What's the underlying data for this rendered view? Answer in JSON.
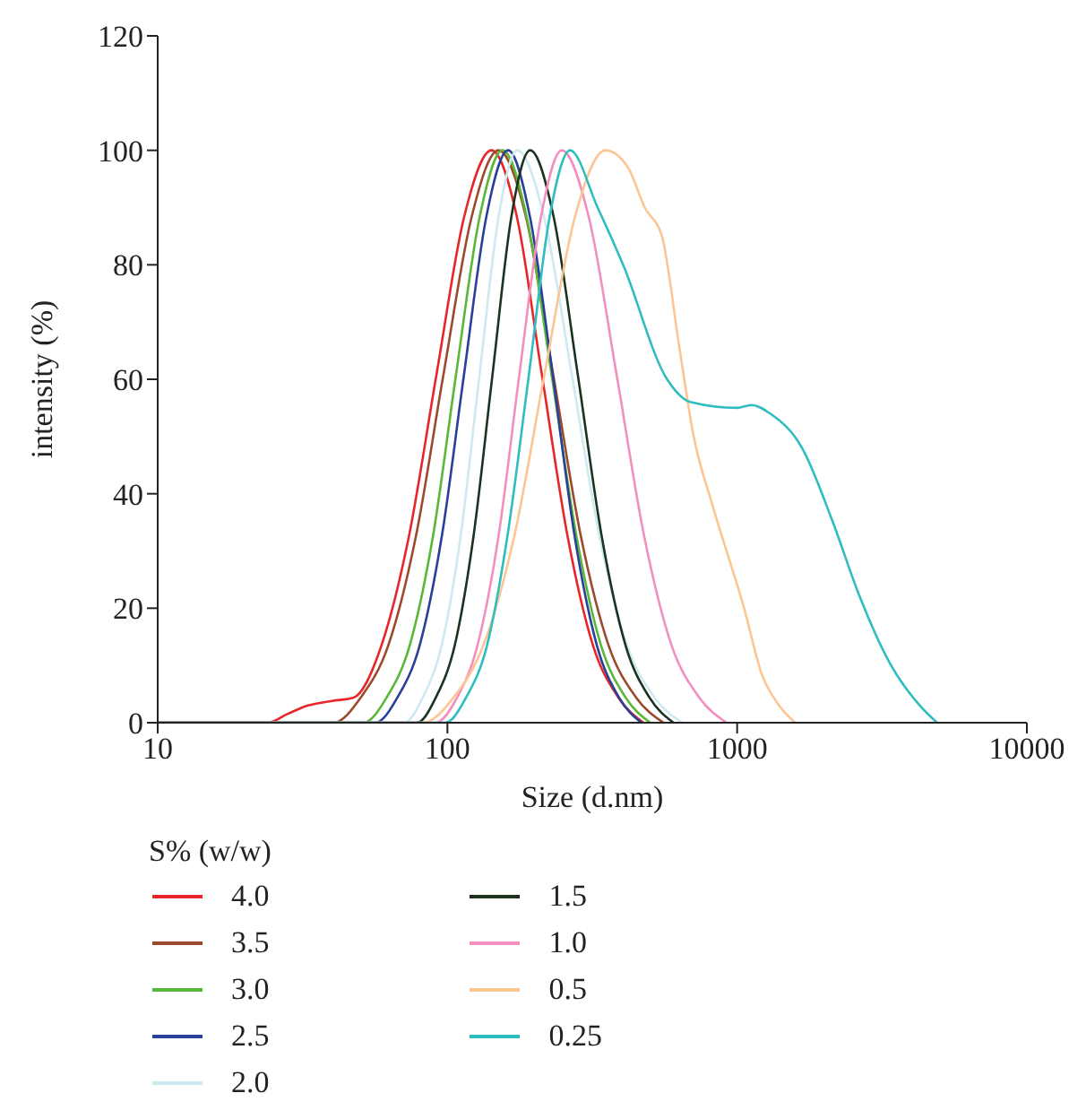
{
  "chart_data": {
    "type": "line",
    "xlabel": "Size (d.nm)",
    "ylabel": "intensity (%)",
    "legend_title": "S% (w/w)",
    "log": "x",
    "xlim": [
      10,
      10000
    ],
    "xticks": [
      10,
      100,
      1000,
      10000
    ],
    "ylim": [
      0,
      120
    ],
    "yticks": [
      0,
      20,
      40,
      60,
      80,
      100,
      120
    ],
    "legend": "bottom",
    "marker": "none",
    "line_style": "solid",
    "series": [
      {
        "name": "4.0",
        "color": "#e8262a",
        "x": [
          10,
          24,
          28,
          33,
          40,
          47.5,
          59.2,
          73.6,
          91.6,
          114,
          142,
          174,
          212,
          260,
          318,
          389,
          475
        ],
        "values": [
          0,
          0,
          1.5,
          3,
          3.8,
          4.4,
          13.5,
          32.5,
          60.7,
          88.2,
          100,
          88.2,
          60.7,
          32.5,
          13.5,
          4.4,
          0
        ]
      },
      {
        "name": "3.5",
        "color": "#9c4a2c",
        "x": [
          10,
          40.4,
          50.2,
          62.5,
          77.8,
          96.8,
          121,
          150,
          187,
          232,
          289,
          360,
          448,
          557
        ],
        "values": [
          0,
          0,
          4.4,
          13.5,
          32.5,
          60.7,
          88.2,
          100,
          88.2,
          60.7,
          32.5,
          13.5,
          4.4,
          0
        ]
      },
      {
        "name": "3.0",
        "color": "#5ab738",
        "x": [
          10,
          51.3,
          61.7,
          74.1,
          89.1,
          107,
          129,
          155,
          188,
          229,
          279,
          339,
          412,
          501
        ],
        "values": [
          0,
          0,
          4.4,
          13.5,
          32.5,
          60.7,
          88.2,
          100,
          88.2,
          60.7,
          32.5,
          13.5,
          4.4,
          0
        ]
      },
      {
        "name": "2.5",
        "color": "#2a3f98",
        "x": [
          10,
          56.4,
          67.2,
          80.2,
          95.6,
          114,
          136,
          162,
          193,
          231,
          275,
          328,
          391,
          467
        ],
        "values": [
          0,
          0,
          4.4,
          13.5,
          32.5,
          60.7,
          88.2,
          100,
          88.2,
          60.7,
          32.5,
          13.5,
          4.4,
          0
        ]
      },
      {
        "name": "2.0",
        "color": "#cdeaf0",
        "x": [
          10,
          70.8,
          82.2,
          95.5,
          111,
          129,
          150,
          174,
          216,
          269,
          335,
          417,
          519,
          646
        ],
        "values": [
          0,
          0,
          4.4,
          13.5,
          32.5,
          60.7,
          88.2,
          100,
          88.2,
          60.7,
          32.5,
          13.5,
          4.4,
          0
        ]
      },
      {
        "name": "1.5",
        "color": "#1b3320",
        "x": [
          10,
          78.5,
          91.2,
          106,
          123,
          143,
          166,
          193,
          233,
          282,
          341,
          412,
          498,
          603
        ],
        "values": [
          0,
          0,
          4.4,
          13.5,
          32.5,
          60.7,
          88.2,
          100,
          88.2,
          60.7,
          32.5,
          13.5,
          4.4,
          0
        ]
      },
      {
        "name": "1.0",
        "color": "#f28fbf",
        "x": [
          10,
          91,
          108,
          127,
          150,
          177,
          210,
          248,
          308,
          384,
          478,
          594,
          740,
          920
        ],
        "values": [
          0,
          0,
          4.4,
          13.5,
          32.5,
          60.7,
          88.2,
          100,
          88.2,
          60.7,
          32.5,
          13.5,
          4.4,
          0
        ]
      },
      {
        "name": "0.5",
        "color": "#fcc594",
        "x": [
          10,
          82.2,
          105,
          133,
          170,
          216,
          275,
          351,
          420,
          480,
          550,
          630,
          708,
          822,
          1057,
          1216,
          1396,
          1585
        ],
        "values": [
          0,
          0,
          4.4,
          13.5,
          32.5,
          60.7,
          88.2,
          100,
          97,
          90,
          85,
          66,
          50,
          38,
          20,
          8.5,
          3,
          0
        ]
      },
      {
        "name": "0.25",
        "color": "#2fbdbf",
        "x": [
          10,
          98.2,
          116,
          137,
          161,
          191,
          225,
          265,
          330,
          404,
          573,
          692,
          1000,
          1120,
          1300,
          1675,
          2120,
          2650,
          3365,
          4270,
          4900
        ],
        "values": [
          0,
          0,
          4.4,
          13.5,
          32.5,
          60.7,
          88.2,
          100,
          90,
          80,
          60,
          56,
          55,
          55.5,
          54,
          48,
          35.6,
          22,
          10.4,
          3,
          0
        ]
      }
    ]
  }
}
